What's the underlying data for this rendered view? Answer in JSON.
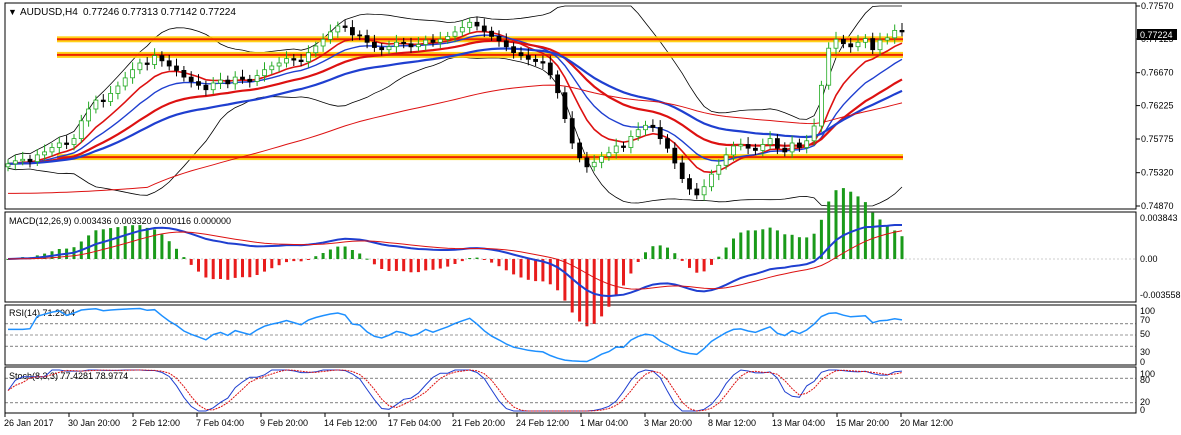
{
  "header": {
    "symbol_tf": "AUDUSD,H4",
    "ohlc": "0.77246 0.77313 0.77142 0.77224"
  },
  "price_axis": {
    "labels": [
      "0.77570",
      "0.77125",
      "0.76670",
      "0.76225",
      "0.75775",
      "0.75320",
      "0.74870"
    ],
    "current_price": "0.77224",
    "range": [
      0.7487,
      0.7757
    ]
  },
  "macd_panel": {
    "title": "MACD(12,26,9) 0.003436 0.003320 0.000116 0.000000",
    "axis_labels": [
      "0.003843",
      "0.00",
      "-0.003558"
    ]
  },
  "rsi_panel": {
    "title": "RSI(14) 71.2904",
    "axis_labels": [
      "100",
      "70",
      "50",
      "30",
      "0"
    ]
  },
  "stoch_panel": {
    "title": "Stoch(8,3,3) 77.4281 78.9774",
    "axis_labels": [
      "100",
      "80",
      "20",
      "0"
    ]
  },
  "time_axis": {
    "labels": [
      "26 Jan 2017",
      "30 Jan 20:00",
      "2 Feb 12:00",
      "7 Feb 04:00",
      "9 Feb 20:00",
      "14 Feb 12:00",
      "17 Feb 04:00",
      "21 Feb 20:00",
      "24 Feb 12:00",
      "1 Mar 04:00",
      "3 Mar 20:00",
      "8 Mar 12:00",
      "13 Mar 04:00",
      "15 Mar 20:00",
      "20 Mar 12:00"
    ]
  },
  "colors": {
    "bull_candle": "#22aa22",
    "bear_candle": "#000000",
    "sr_line": "#ee2200",
    "sr_glow": "#ffcc00",
    "ma_blue": "#1f3fd0",
    "ma_red": "#dd1111",
    "bollinger": "#000000",
    "macd_line": "#1f3fd0",
    "macd_signal": "#dd1111",
    "hist_up": "#1a9a1a",
    "hist_down": "#e81c1c",
    "rsi_line": "#1e90ff"
  },
  "chart_data": {
    "type": "candlestick",
    "series": [
      {
        "name": "AUDUSD H4",
        "values": [
          0.7544,
          0.7548,
          0.755,
          0.7547,
          0.7556,
          0.756,
          0.7566,
          0.7572,
          0.757,
          0.7578,
          0.7602,
          0.7618,
          0.763,
          0.7628,
          0.7639,
          0.7649,
          0.766,
          0.7671,
          0.768,
          0.7678,
          0.769,
          0.7683,
          0.7676,
          0.767,
          0.7661,
          0.7655,
          0.765,
          0.7644,
          0.7653,
          0.7657,
          0.7652,
          0.7661,
          0.7658,
          0.7655,
          0.7663,
          0.7671,
          0.7676,
          0.768,
          0.7686,
          0.7684,
          0.7682,
          0.7694,
          0.7703,
          0.7712,
          0.7722,
          0.773,
          0.7728,
          0.7718,
          0.7717,
          0.7708,
          0.7701,
          0.7698,
          0.7702,
          0.7708,
          0.7706,
          0.7702,
          0.7705,
          0.7711,
          0.7708,
          0.7712,
          0.7716,
          0.7722,
          0.7728,
          0.7735,
          0.773,
          0.7723,
          0.7716,
          0.771,
          0.7702,
          0.7694,
          0.769,
          0.7685,
          0.7682,
          0.768,
          0.7664,
          0.764,
          0.7605,
          0.7572,
          0.7552,
          0.754,
          0.7546,
          0.7554,
          0.7559,
          0.7568,
          0.7566,
          0.7581,
          0.759,
          0.7596,
          0.7593,
          0.7578,
          0.7565,
          0.7545,
          0.7524,
          0.751,
          0.7502,
          0.7513,
          0.753,
          0.7542,
          0.7556,
          0.7568,
          0.757,
          0.7565,
          0.7562,
          0.757,
          0.7578,
          0.7565,
          0.756,
          0.7572,
          0.7566,
          0.7575,
          0.7595,
          0.765,
          0.77,
          0.7712,
          0.7706,
          0.7702,
          0.7708,
          0.7713,
          0.7698,
          0.7711,
          0.7714,
          0.7724,
          0.7722
        ]
      }
    ],
    "levels": [
      0.7712,
      0.7691,
      0.7553
    ],
    "ylim": [
      0.7487,
      0.7757
    ]
  }
}
